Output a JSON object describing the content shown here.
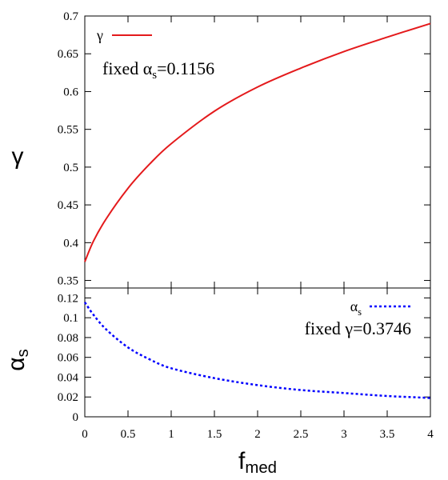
{
  "chart_data": [
    {
      "type": "line",
      "ylabel": "γ",
      "xlim": [
        0,
        4
      ],
      "ylim": [
        0.34,
        0.7
      ],
      "xticks": [
        "",
        "",
        "",
        "",
        "",
        "",
        "",
        "",
        ""
      ],
      "yticks": [
        "0.35",
        "0.4",
        "0.45",
        "0.5",
        "0.55",
        "0.6",
        "0.65",
        "0.7"
      ],
      "ytick_values": [
        0.35,
        0.4,
        0.45,
        0.5,
        0.55,
        0.6,
        0.65,
        0.7
      ],
      "legend_position": "top-left",
      "annotation": {
        "prefix": "fixed α",
        "sub": "s",
        "value": "=0.1156"
      },
      "series": [
        {
          "name": "γ",
          "color": "#e41a1c",
          "style": "solid",
          "x": [
            0,
            0.1,
            0.25,
            0.5,
            0.75,
            1,
            1.5,
            2,
            2.5,
            3,
            3.5,
            4
          ],
          "y": [
            0.3746,
            0.402,
            0.432,
            0.472,
            0.504,
            0.531,
            0.574,
            0.606,
            0.631,
            0.653,
            0.672,
            0.69
          ]
        }
      ]
    },
    {
      "type": "line",
      "xlabel": {
        "main": "f",
        "sub": "med"
      },
      "ylabel": {
        "main": "α",
        "sub": "s"
      },
      "xlim": [
        0,
        4
      ],
      "ylim": [
        0,
        0.13
      ],
      "xticks": [
        "0",
        "0.5",
        "1",
        "1.5",
        "2",
        "2.5",
        "3",
        "3.5",
        "4"
      ],
      "xtick_values": [
        0,
        0.5,
        1,
        1.5,
        2,
        2.5,
        3,
        3.5,
        4
      ],
      "yticks": [
        "0",
        "0.02",
        "0.04",
        "0.06",
        "0.08",
        "0.1",
        "0.12"
      ],
      "ytick_values": [
        0,
        0.02,
        0.04,
        0.06,
        0.08,
        0.1,
        0.12
      ],
      "legend_position": "top-right",
      "annotation": {
        "prefix": "fixed γ",
        "sub": "",
        "value": "=0.3746"
      },
      "series": [
        {
          "name": "α",
          "name_sub": "s",
          "color": "#0000ff",
          "style": "dotted",
          "x": [
            0,
            0.1,
            0.25,
            0.5,
            0.75,
            1,
            1.5,
            2,
            2.5,
            3,
            3.5,
            4
          ],
          "y": [
            0.1156,
            0.103,
            0.088,
            0.07,
            0.058,
            0.049,
            0.039,
            0.032,
            0.027,
            0.024,
            0.021,
            0.019
          ]
        }
      ]
    }
  ]
}
